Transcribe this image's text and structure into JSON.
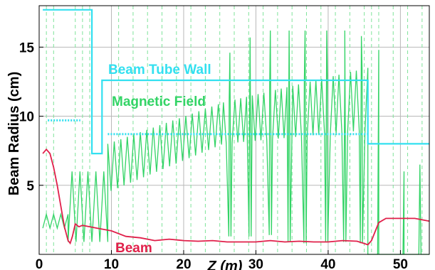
{
  "chart_data": {
    "type": "line",
    "xlabel": "Z (m)",
    "ylabel": "Beam Radius (cm)",
    "xlim": [
      0,
      54
    ],
    "ylim": [
      0,
      18
    ],
    "x_ticks": [
      0,
      10,
      20,
      30,
      40,
      50
    ],
    "y_ticks": [
      5,
      10,
      15
    ],
    "grid": true,
    "dashed_vertical_markers_z": [
      1,
      2,
      5,
      6,
      7,
      11,
      13,
      15,
      17,
      19,
      21,
      23,
      25,
      27,
      29,
      31,
      33,
      35,
      37,
      39,
      41,
      43,
      45,
      46,
      47,
      49,
      51,
      53
    ],
    "annotations": [
      {
        "text": "Beam Tube Wall",
        "color": "#33e0f0",
        "series": "Beam Tube Wall"
      },
      {
        "text": "Magnetic Field",
        "color": "#33d466",
        "series": "Magnetic Field"
      },
      {
        "text": "Beam",
        "color": "#e0204a",
        "series": "Beam"
      }
    ],
    "series": [
      {
        "name": "Beam Tube Wall",
        "color": "#33e0f0",
        "x": [
          0.5,
          7.3,
          7.3,
          8.7,
          8.7,
          45.5,
          45.5,
          54
        ],
        "y": [
          17.7,
          17.7,
          7.3,
          7.3,
          12.6,
          12.6,
          8.0,
          8.0
        ]
      },
      {
        "name": "Beam Tube Wall (dotted)",
        "color": "#33e0f0",
        "x": [
          1.2,
          5.7
        ],
        "y": [
          9.7,
          9.7
        ]
      },
      {
        "name": "Beam Tube Wall (dotted, inner)",
        "color": "#33e0f0",
        "x": [
          9.5,
          45.5
        ],
        "y": [
          8.7,
          8.7
        ]
      },
      {
        "name": "Magnetic Field",
        "color": "#33d466",
        "mode": "oscillating",
        "segments": [
          {
            "x_range": [
              0.5,
              4.0
            ],
            "x_step": 0.5,
            "low": 1.9,
            "high": 2.9
          },
          {
            "x_range": [
              4.0,
              9.5
            ],
            "x_step": 0.55,
            "low": 0.9,
            "high": 6.0
          },
          {
            "x_range": [
              9.5,
              25.5
            ],
            "x_step": 0.45,
            "low_start": 4.5,
            "low_end": 8.0,
            "high_start": 8.0,
            "high_end": 11.0
          },
          {
            "x_range": [
              25.5,
              45.5
            ],
            "x_step": 0.4,
            "low_start": 8.0,
            "low_end": 9.0,
            "high_start": 11.0,
            "high_end": 13.5
          },
          {
            "x_range": [
              45.5,
              54
            ],
            "x_step": 0.5,
            "low": 0.0,
            "high": 0.0
          }
        ],
        "spikes": [
          {
            "x": 26.4,
            "min": 1.3,
            "max": 14.6
          },
          {
            "x": 29.2,
            "min": 1.3,
            "max": 15.7
          },
          {
            "x": 32.0,
            "min": 1.4,
            "max": 16.2
          },
          {
            "x": 34.6,
            "min": 0.9,
            "max": 16.2
          },
          {
            "x": 36.8,
            "min": 0.8,
            "max": 16.2
          },
          {
            "x": 39.8,
            "min": 0.9,
            "max": 16.2
          },
          {
            "x": 42.3,
            "min": 0.9,
            "max": 16.2
          },
          {
            "x": 44.6,
            "min": 0.8,
            "max": 15.8
          },
          {
            "x": 47.0,
            "min": 0.0,
            "max": 14.8
          },
          {
            "x": 50.5,
            "min": 0.0,
            "max": 6.0
          },
          {
            "x": 52.7,
            "min": 0.0,
            "max": 6.5
          }
        ]
      },
      {
        "name": "Beam",
        "color": "#e0204a",
        "x": [
          0.5,
          1.0,
          1.5,
          2.0,
          2.5,
          3.0,
          3.5,
          4.0,
          4.3,
          4.6,
          5.0,
          5.5,
          6.0,
          7.0,
          8.0,
          9.0,
          10.0,
          12.0,
          14.0,
          16.0,
          18.0,
          20.0,
          22.0,
          24.0,
          26.0,
          28.0,
          30.0,
          32.0,
          34.0,
          36.0,
          38.0,
          40.0,
          42.0,
          44.0,
          45.5,
          46.0,
          47.0,
          48.0,
          50.0,
          52.0,
          54.0
        ],
        "y": [
          7.3,
          7.6,
          7.3,
          6.3,
          5.0,
          3.5,
          2.0,
          1.0,
          0.8,
          1.3,
          2.2,
          2.0,
          2.1,
          2.0,
          1.9,
          1.8,
          1.7,
          1.3,
          1.2,
          1.0,
          1.1,
          1.0,
          0.95,
          1.0,
          0.9,
          0.9,
          0.9,
          1.0,
          0.9,
          0.95,
          0.9,
          0.9,
          1.0,
          0.95,
          0.7,
          1.0,
          2.3,
          2.6,
          2.6,
          2.6,
          2.4
        ]
      }
    ]
  }
}
